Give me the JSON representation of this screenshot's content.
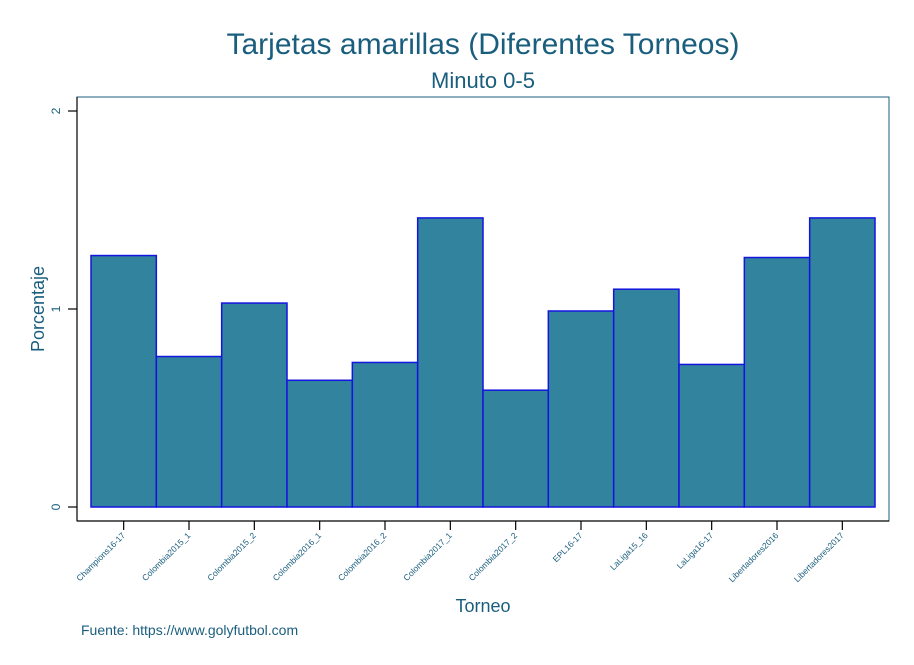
{
  "chart_data": {
    "type": "bar",
    "title": "Tarjetas amarillas (Diferentes Torneos)",
    "subtitle": "Minuto 0-5",
    "xlabel": "Torneo",
    "ylabel": "Porcentaje",
    "note": "Fuente: https://www.golyfutbol.com",
    "categories": [
      "Champions16-17",
      "Colombia2015_1",
      "Colombia2015_2",
      "Colombia2016_1",
      "Colombia2016_2",
      "Colombia2017_1",
      "Colombia2017_2",
      "EPL16-17",
      "LaLiga15_16",
      "LaLiga16-17",
      "Libertadores2016",
      "Libertadores2017"
    ],
    "values": [
      1.27,
      0.76,
      1.03,
      0.64,
      0.73,
      1.46,
      0.59,
      0.99,
      1.1,
      0.72,
      1.26,
      1.46
    ],
    "ylim": [
      0,
      2
    ],
    "yticks": [
      "0",
      "1",
      "2"
    ],
    "grid": false,
    "colors": {
      "bar_fill": "#31839e",
      "bar_stroke": "#1515e0",
      "text": "#1a5e7e",
      "frame": "#1a5e7e",
      "axis": "#000000"
    }
  }
}
